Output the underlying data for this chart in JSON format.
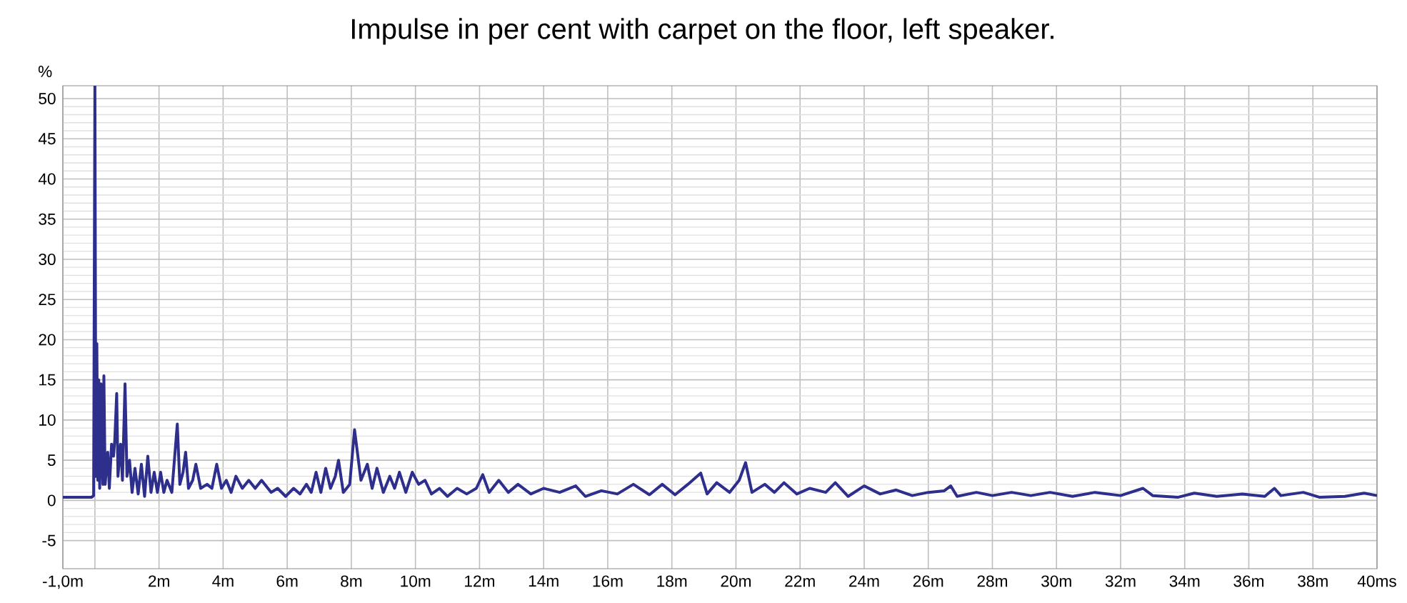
{
  "chart_data": {
    "type": "line",
    "title": "Impulse in per cent with carpet on the floor, left speaker.",
    "ylabel": "%",
    "xlim": [
      -1,
      40
    ],
    "ylim": [
      -8.5,
      51.6
    ],
    "xticks": [
      {
        "value": -1,
        "label": "-1,0m"
      },
      {
        "value": 0,
        "label": null
      },
      {
        "value": 2,
        "label": "2m"
      },
      {
        "value": 4,
        "label": "4m"
      },
      {
        "value": 6,
        "label": "6m"
      },
      {
        "value": 8,
        "label": "8m"
      },
      {
        "value": 10,
        "label": "10m"
      },
      {
        "value": 12,
        "label": "12m"
      },
      {
        "value": 14,
        "label": "14m"
      },
      {
        "value": 16,
        "label": "16m"
      },
      {
        "value": 18,
        "label": "18m"
      },
      {
        "value": 20,
        "label": "20m"
      },
      {
        "value": 22,
        "label": "22m"
      },
      {
        "value": 24,
        "label": "24m"
      },
      {
        "value": 26,
        "label": "26m"
      },
      {
        "value": 28,
        "label": "28m"
      },
      {
        "value": 30,
        "label": "30m"
      },
      {
        "value": 32,
        "label": "32m"
      },
      {
        "value": 34,
        "label": "34m"
      },
      {
        "value": 36,
        "label": "36m"
      },
      {
        "value": 38,
        "label": "38m"
      },
      {
        "value": 40,
        "label": "40ms"
      }
    ],
    "yticks": [
      -5,
      0,
      5,
      10,
      15,
      20,
      25,
      30,
      35,
      40,
      45,
      50
    ],
    "grid": true,
    "marker": "none",
    "line_style": "solid",
    "series": [
      {
        "color": "#2e2e8c",
        "x": [
          -1,
          -0.1,
          -0.04,
          0,
          0.03,
          0.06,
          0.09,
          0.12,
          0.15,
          0.19,
          0.22,
          0.25,
          0.28,
          0.32,
          0.4,
          0.45,
          0.52,
          0.58,
          0.62,
          0.68,
          0.72,
          0.8,
          0.86,
          0.94,
          1.0,
          1.08,
          1.16,
          1.25,
          1.35,
          1.45,
          1.55,
          1.65,
          1.75,
          1.85,
          1.95,
          2.05,
          2.15,
          2.25,
          2.4,
          2.57,
          2.65,
          2.75,
          2.83,
          2.92,
          3.05,
          3.15,
          3.3,
          3.5,
          3.65,
          3.8,
          3.95,
          4.1,
          4.25,
          4.4,
          4.6,
          4.8,
          5.0,
          5.2,
          5.5,
          5.7,
          5.95,
          6.2,
          6.4,
          6.6,
          6.75,
          6.9,
          7.05,
          7.2,
          7.35,
          7.5,
          7.6,
          7.75,
          7.95,
          8.1,
          8.3,
          8.5,
          8.65,
          8.8,
          9.0,
          9.2,
          9.35,
          9.5,
          9.7,
          9.9,
          10.1,
          10.3,
          10.5,
          10.75,
          11.0,
          11.3,
          11.6,
          11.9,
          12.1,
          12.3,
          12.6,
          12.9,
          13.2,
          13.6,
          14.0,
          14.5,
          15.0,
          15.3,
          15.8,
          16.3,
          16.8,
          17.3,
          17.7,
          18.1,
          18.5,
          18.9,
          19.1,
          19.4,
          19.8,
          20.1,
          20.3,
          20.5,
          20.9,
          21.2,
          21.5,
          21.9,
          22.3,
          22.8,
          23.1,
          23.5,
          24.0,
          24.5,
          25.0,
          25.5,
          26.0,
          26.5,
          26.7,
          26.9,
          27.5,
          28.0,
          28.6,
          29.2,
          29.8,
          30.5,
          31.2,
          32.0,
          32.7,
          33.0,
          33.8,
          34.3,
          35.0,
          35.8,
          36.5,
          36.8,
          37.0,
          37.7,
          38.2,
          39.0,
          39.6,
          40.0
        ],
        "values": [
          0.4,
          0.4,
          0.6,
          51.6,
          3,
          19.5,
          2.5,
          15,
          1.5,
          14.5,
          5.5,
          2,
          15.5,
          2,
          6,
          1.5,
          7,
          5.5,
          7.5,
          13.3,
          3,
          7,
          2.5,
          14.5,
          3,
          5,
          1,
          4,
          0.8,
          4.5,
          0.5,
          5.5,
          1,
          3.5,
          1,
          3.5,
          1,
          2.5,
          1,
          9.5,
          2,
          3.5,
          6,
          1.5,
          2.5,
          4.5,
          1.5,
          2,
          1.5,
          4.5,
          1.5,
          2.5,
          1,
          3,
          1.5,
          2.5,
          1.5,
          2.5,
          1,
          1.5,
          0.5,
          1.5,
          0.8,
          2,
          1,
          3.5,
          1,
          4,
          1.5,
          3,
          5,
          1,
          2,
          8.8,
          2.5,
          4.5,
          1.5,
          4,
          1,
          3,
          1.5,
          3.5,
          1,
          3.5,
          2,
          2.5,
          0.8,
          1.5,
          0.5,
          1.5,
          0.8,
          1.5,
          3.2,
          1,
          2.5,
          1,
          2,
          0.8,
          1.5,
          1,
          1.8,
          0.5,
          1.2,
          0.8,
          2,
          0.7,
          2,
          0.7,
          2,
          3.4,
          0.8,
          2.2,
          1,
          2.5,
          4.7,
          1,
          2,
          1,
          2.2,
          0.8,
          1.5,
          1,
          2.2,
          0.5,
          1.8,
          0.8,
          1.3,
          0.6,
          1,
          1.2,
          1.8,
          0.5,
          1,
          0.6,
          1,
          0.6,
          1,
          0.5,
          1,
          0.6,
          1.5,
          0.6,
          0.4,
          0.9,
          0.5,
          0.8,
          0.5,
          1.5,
          0.6,
          1,
          0.4,
          0.5,
          0.9,
          0.6
        ]
      }
    ]
  }
}
